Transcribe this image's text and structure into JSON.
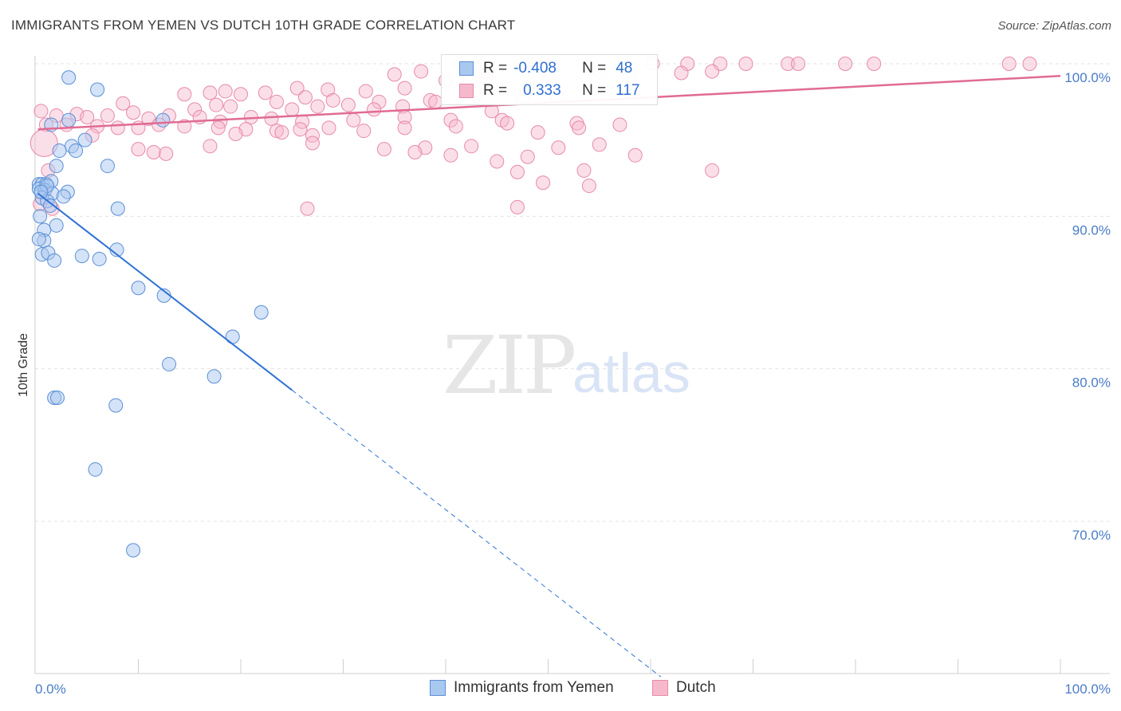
{
  "header": {
    "title": "IMMIGRANTS FROM YEMEN VS DUTCH 10TH GRADE CORRELATION CHART",
    "source": "Source: ZipAtlas.com"
  },
  "watermark": {
    "zip": "ZIP",
    "atlas": "atlas"
  },
  "legend": {
    "rows": [
      {
        "r_label": "R =",
        "r_value": "-0.408",
        "n_label": "N =",
        "n_value": "48"
      },
      {
        "r_label": "R =",
        "r_value": "0.333",
        "n_label": "N =",
        "n_value": "117"
      }
    ]
  },
  "bottom_legend": {
    "series1": "Immigrants from Yemen",
    "series2": "Dutch"
  },
  "colors": {
    "blue_fill": "#a9c8f0",
    "blue_stroke": "#5b8fd6",
    "blue_line": "#2f72d4",
    "pink_fill": "#f6b9cc",
    "pink_stroke": "#e78aa8",
    "pink_line": "#e06b93",
    "grid": "#e3e3e3",
    "tick_text": "#4a7cc9"
  },
  "chart_data": {
    "type": "scatter",
    "title": "IMMIGRANTS FROM YEMEN VS DUTCH 10TH GRADE CORRELATION CHART",
    "xlabel": "",
    "ylabel": "10th Grade",
    "xlim": [
      0,
      105
    ],
    "ylim": [
      60,
      101
    ],
    "x_tick_labels": [
      "0.0%",
      "100.0%"
    ],
    "y_ticks": [
      {
        "value": 100,
        "label": "100.0%"
      },
      {
        "value": 90,
        "label": "90.0%"
      },
      {
        "value": 80,
        "label": "80.0%"
      },
      {
        "value": 70,
        "label": "70.0%"
      }
    ],
    "series": [
      {
        "name": "Immigrants from Yemen",
        "r": -0.408,
        "n": 48,
        "trend": {
          "x0": 0.2,
          "y0": 91.5,
          "x1": 25.0,
          "y1": 78.6,
          "dash_x1": 61.0,
          "dash_y1": 59.8
        },
        "points": [
          [
            3.2,
            99.1
          ],
          [
            6.0,
            98.3
          ],
          [
            1.5,
            96.0
          ],
          [
            3.2,
            96.3
          ],
          [
            12.4,
            96.3
          ],
          [
            4.8,
            95.0
          ],
          [
            3.5,
            94.6
          ],
          [
            2.3,
            94.3
          ],
          [
            3.9,
            94.3
          ],
          [
            7.0,
            93.3
          ],
          [
            2.0,
            93.3
          ],
          [
            0.3,
            92.1
          ],
          [
            0.6,
            92.1
          ],
          [
            1.0,
            92.1
          ],
          [
            1.5,
            92.3
          ],
          [
            0.3,
            91.8
          ],
          [
            0.9,
            91.7
          ],
          [
            1.6,
            91.5
          ],
          [
            3.1,
            91.6
          ],
          [
            0.6,
            91.2
          ],
          [
            1.1,
            91.0
          ],
          [
            1.4,
            90.7
          ],
          [
            8.0,
            90.5
          ],
          [
            0.4,
            90.0
          ],
          [
            2.0,
            89.4
          ],
          [
            0.8,
            89.1
          ],
          [
            0.8,
            88.4
          ],
          [
            0.3,
            88.5
          ],
          [
            7.9,
            87.8
          ],
          [
            0.6,
            87.5
          ],
          [
            1.2,
            87.6
          ],
          [
            1.8,
            87.1
          ],
          [
            4.5,
            87.4
          ],
          [
            6.2,
            87.2
          ],
          [
            10.0,
            85.3
          ],
          [
            12.5,
            84.8
          ],
          [
            22.0,
            83.7
          ],
          [
            19.2,
            82.1
          ],
          [
            13.0,
            80.3
          ],
          [
            17.4,
            79.5
          ],
          [
            1.8,
            78.1
          ],
          [
            2.1,
            78.1
          ],
          [
            7.8,
            77.6
          ],
          [
            5.8,
            73.4
          ],
          [
            9.5,
            68.1
          ],
          [
            1.1,
            92.0
          ],
          [
            0.5,
            91.6
          ],
          [
            2.7,
            91.3
          ]
        ]
      },
      {
        "name": "Dutch",
        "r": 0.333,
        "n": 117,
        "trend": {
          "x0": 0.2,
          "y0": 95.7,
          "x1": 100.0,
          "y1": 99.2
        },
        "points": [
          [
            37.6,
            99.5
          ],
          [
            41.4,
            100.0
          ],
          [
            60.2,
            100.0
          ],
          [
            63.6,
            100.0
          ],
          [
            66.8,
            100.0
          ],
          [
            69.3,
            100.0
          ],
          [
            73.4,
            100.0
          ],
          [
            74.4,
            100.0
          ],
          [
            79.0,
            100.0
          ],
          [
            81.8,
            100.0
          ],
          [
            95.0,
            100.0
          ],
          [
            97.0,
            100.0
          ],
          [
            63.0,
            99.4
          ],
          [
            66.0,
            99.5
          ],
          [
            43.5,
            99.2
          ],
          [
            40.0,
            98.9
          ],
          [
            35.0,
            99.3
          ],
          [
            44.0,
            99.0
          ],
          [
            50.0,
            99.1
          ],
          [
            55.0,
            99.5
          ],
          [
            58.0,
            99.1
          ],
          [
            42.0,
            98.5
          ],
          [
            25.5,
            98.4
          ],
          [
            28.5,
            98.3
          ],
          [
            32.2,
            98.2
          ],
          [
            36.0,
            98.4
          ],
          [
            17.0,
            98.1
          ],
          [
            18.5,
            98.2
          ],
          [
            22.4,
            98.1
          ],
          [
            14.5,
            98.0
          ],
          [
            20.0,
            98.0
          ],
          [
            26.3,
            97.8
          ],
          [
            29.0,
            97.6
          ],
          [
            33.5,
            97.5
          ],
          [
            38.5,
            97.6
          ],
          [
            43.0,
            98.0
          ],
          [
            47.5,
            97.8
          ],
          [
            50.8,
            97.9
          ],
          [
            8.5,
            97.4
          ],
          [
            15.5,
            97.0
          ],
          [
            17.6,
            97.3
          ],
          [
            19.0,
            97.2
          ],
          [
            23.5,
            97.5
          ],
          [
            25.0,
            97.0
          ],
          [
            27.5,
            97.2
          ],
          [
            30.5,
            97.3
          ],
          [
            33.0,
            97.0
          ],
          [
            35.8,
            97.2
          ],
          [
            39.0,
            97.5
          ],
          [
            44.5,
            96.9
          ],
          [
            2.0,
            96.6
          ],
          [
            4.0,
            96.7
          ],
          [
            5.0,
            96.5
          ],
          [
            7.0,
            96.6
          ],
          [
            9.5,
            96.8
          ],
          [
            11.0,
            96.4
          ],
          [
            13.0,
            96.6
          ],
          [
            16.0,
            96.5
          ],
          [
            18.0,
            96.2
          ],
          [
            21.0,
            96.5
          ],
          [
            23.0,
            96.4
          ],
          [
            26.0,
            96.2
          ],
          [
            31.0,
            96.3
          ],
          [
            36.0,
            96.5
          ],
          [
            40.5,
            96.3
          ],
          [
            45.5,
            96.3
          ],
          [
            52.8,
            96.1
          ],
          [
            1.0,
            96.0
          ],
          [
            3.0,
            96.0
          ],
          [
            6.0,
            95.9
          ],
          [
            8.0,
            95.8
          ],
          [
            10.0,
            95.8
          ],
          [
            12.0,
            96.0
          ],
          [
            14.5,
            95.9
          ],
          [
            17.8,
            95.8
          ],
          [
            20.5,
            95.7
          ],
          [
            23.5,
            95.6
          ],
          [
            25.8,
            95.7
          ],
          [
            28.6,
            95.8
          ],
          [
            32.0,
            95.6
          ],
          [
            36.0,
            95.8
          ],
          [
            41.0,
            95.9
          ],
          [
            46.0,
            96.1
          ],
          [
            53.0,
            95.8
          ],
          [
            57.0,
            96.0
          ],
          [
            5.5,
            95.3
          ],
          [
            19.5,
            95.4
          ],
          [
            24.0,
            95.5
          ],
          [
            27.0,
            95.3
          ],
          [
            49.0,
            95.5
          ],
          [
            17.0,
            94.6
          ],
          [
            27.0,
            94.8
          ],
          [
            34.0,
            94.4
          ],
          [
            38.0,
            94.5
          ],
          [
            42.5,
            94.6
          ],
          [
            51.0,
            94.5
          ],
          [
            55.0,
            94.7
          ],
          [
            10.0,
            94.4
          ],
          [
            11.5,
            94.2
          ],
          [
            12.7,
            94.1
          ],
          [
            37.0,
            94.2
          ],
          [
            40.5,
            94.0
          ],
          [
            58.5,
            94.0
          ],
          [
            45.0,
            93.6
          ],
          [
            48.0,
            93.9
          ],
          [
            47.0,
            92.9
          ],
          [
            53.5,
            93.0
          ],
          [
            66.0,
            93.0
          ],
          [
            49.5,
            92.2
          ],
          [
            54.0,
            92.0
          ],
          [
            26.5,
            90.5
          ],
          [
            47.0,
            90.6
          ],
          [
            0.5,
            96.9
          ],
          [
            0.8,
            94.8
          ],
          [
            1.2,
            93.0
          ],
          [
            0.4,
            90.8
          ],
          [
            1.6,
            90.5
          ]
        ]
      }
    ]
  }
}
